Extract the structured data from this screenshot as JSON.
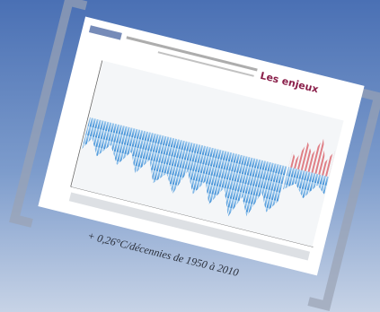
{
  "slide": {
    "title": "Les enjeux",
    "caption": "+ 0,26°C/décennies de 1950 à 2010"
  }
}
